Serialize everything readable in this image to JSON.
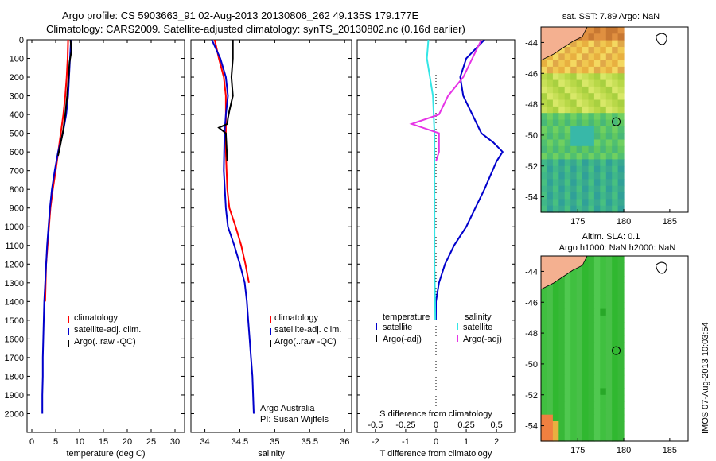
{
  "header": {
    "line1": "Argo profile: CS 5903663_91 02-Aug-2013 20130806_262 49.135S 179.177E",
    "line2": "Climatology: CARS2009. Satellite-adjusted climatology: synTS_20130802.nc (0.16d earlier)"
  },
  "map_titles": {
    "top": "sat. SST: 7.89 Argo: NaN",
    "bottom_1": "Altim. SLA: 0.1",
    "bottom_2": "Argo h1000: NaN h2000: NaN"
  },
  "side_stamp": "IMOS 07-Aug-2013 10:03:54",
  "footer_note": {
    "line1": "Argo Australia",
    "line2": "PI: Susan Wijffels"
  },
  "colors": {
    "climatology": "#ff0000",
    "satellite": "#0000cc",
    "argo": "#000000",
    "satellite_s": "#33e6e6",
    "argo_s": "#e633e6"
  },
  "chart_data": [
    {
      "id": "temperature",
      "type": "line",
      "xlabel": "temperature (deg C)",
      "ylabel": "",
      "xlim": [
        -1,
        32
      ],
      "ylim": [
        0,
        2100
      ],
      "y_inverted": true,
      "xticks": [
        0,
        5,
        10,
        15,
        20,
        25,
        30
      ],
      "yticks": [
        0,
        100,
        200,
        300,
        400,
        500,
        600,
        700,
        800,
        900,
        1000,
        1100,
        1200,
        1300,
        1400,
        1500,
        1600,
        1700,
        1800,
        1900,
        2000
      ],
      "legend": [
        "climatology",
        "satellite-adj. clim.",
        "Argo(..raw -QC)"
      ],
      "series": [
        {
          "name": "climatology",
          "color": "#ff0000",
          "x": [
            7.6,
            7.5,
            7.3,
            7.0,
            6.6,
            5.8,
            5.0,
            4.4,
            3.9,
            3.6,
            3.3,
            3.0,
            2.9,
            2.8
          ],
          "y": [
            0,
            100,
            200,
            300,
            400,
            550,
            700,
            800,
            900,
            1000,
            1100,
            1200,
            1300,
            1400
          ]
        },
        {
          "name": "satellite-adj. clim.",
          "color": "#0000cc",
          "x": [
            8.2,
            8.0,
            7.8,
            7.6,
            7.2,
            6.5,
            5.5,
            4.8,
            4.2,
            3.8,
            3.5,
            3.2,
            3.0,
            2.8,
            2.6,
            2.5,
            2.4,
            2.3,
            2.3,
            2.2,
            2.2
          ],
          "y": [
            0,
            100,
            200,
            300,
            400,
            500,
            600,
            700,
            800,
            900,
            1000,
            1100,
            1200,
            1300,
            1400,
            1500,
            1600,
            1700,
            1800,
            1900,
            2000
          ]
        },
        {
          "name": "Argo(..raw -QC)",
          "color": "#000000",
          "x": [
            8.1,
            8.3,
            7.9,
            7.7,
            7.4,
            7.0,
            6.6,
            6.0,
            5.5
          ],
          "y": [
            0,
            60,
            120,
            200,
            300,
            400,
            480,
            560,
            620
          ]
        }
      ]
    },
    {
      "id": "salinity",
      "type": "line",
      "xlabel": "salinity",
      "ylabel": "",
      "xlim": [
        33.8,
        36.1
      ],
      "ylim": [
        0,
        2100
      ],
      "y_inverted": true,
      "xticks": [
        34,
        34.5,
        35,
        35.5,
        36
      ],
      "legend": [
        "climatology",
        "satellite-adj. clim.",
        "Argo(..raw -QC)"
      ],
      "series": [
        {
          "name": "climatology",
          "color": "#ff0000",
          "x": [
            34.14,
            34.2,
            34.27,
            34.3,
            34.3,
            34.3,
            34.32,
            34.35,
            34.44,
            34.52,
            34.58,
            34.63
          ],
          "y": [
            0,
            100,
            200,
            300,
            400,
            600,
            800,
            900,
            1000,
            1100,
            1200,
            1300
          ]
        },
        {
          "name": "satellite-adj. clim.",
          "color": "#0000cc",
          "x": [
            34.1,
            34.22,
            34.3,
            34.33,
            34.3,
            34.28,
            34.27,
            34.3,
            34.33,
            34.42,
            34.5,
            34.57,
            34.6,
            34.62,
            34.64,
            34.66,
            34.68,
            34.7
          ],
          "y": [
            0,
            100,
            200,
            300,
            400,
            500,
            700,
            900,
            1000,
            1100,
            1200,
            1300,
            1400,
            1500,
            1600,
            1700,
            1800,
            2000
          ]
        },
        {
          "name": "Argo(..raw -QC)",
          "color": "#000000",
          "x": [
            34.4,
            34.4,
            34.38,
            34.4,
            34.35,
            34.33,
            34.32,
            34.2,
            34.3,
            34.32
          ],
          "y": [
            0,
            100,
            200,
            300,
            380,
            420,
            450,
            470,
            500,
            650
          ]
        }
      ]
    },
    {
      "id": "difference",
      "type": "line",
      "xlabel": "T difference from climatology",
      "xlabel_secondary": "S difference from climatology",
      "ylabel": "",
      "xlim": [
        -2.6,
        2.6
      ],
      "ylim": [
        0,
        2100
      ],
      "y_inverted": true,
      "xticks": [
        -2,
        -1,
        0,
        1,
        2
      ],
      "xticks_secondary": [
        -0.5,
        -0.25,
        0,
        0.25,
        0.5
      ],
      "xticks_secondary_labels": [
        "-0.5",
        "-0.25",
        "0",
        "0.25",
        "0.5"
      ],
      "legend_headers": [
        "temperature",
        "salinity"
      ],
      "legend": [
        "satellite",
        "Argo(-adj)",
        "satellite",
        "Argo(-adj)"
      ],
      "series": [
        {
          "name": "satellite",
          "color": "#0000cc",
          "quantity": "temperature",
          "x": [
            1.6,
            1.0,
            0.8,
            0.9,
            1.2,
            1.5,
            1.9,
            2.2,
            2.0,
            1.6,
            1.3,
            1.0,
            0.6,
            0.3,
            0.1,
            0.0,
            0.0
          ],
          "y": [
            0,
            100,
            200,
            300,
            400,
            500,
            550,
            600,
            650,
            800,
            900,
            1000,
            1100,
            1200,
            1300,
            1400,
            1500
          ]
        },
        {
          "name": "Argo(-adj)",
          "color": "#000000",
          "quantity": "temperature",
          "x": [],
          "y": []
        },
        {
          "name": "satellite",
          "color": "#33e6e6",
          "quantity": "salinity",
          "x": [
            -0.25,
            -0.3,
            -0.2,
            -0.1,
            -0.05,
            -0.05,
            -0.05,
            -0.05,
            -0.05,
            -0.04,
            -0.03,
            -0.02
          ],
          "y": [
            0,
            100,
            200,
            300,
            500,
            700,
            900,
            1100,
            1200,
            1300,
            1400,
            1500
          ]
        },
        {
          "name": "Argo(-adj)",
          "color": "#e633e6",
          "quantity": "salinity",
          "x": [
            1.5,
            1.2,
            0.9,
            0.4,
            0.1,
            -0.8,
            0.1,
            0.1,
            0.0
          ],
          "y": [
            0,
            100,
            200,
            300,
            400,
            450,
            500,
            600,
            650
          ]
        }
      ]
    },
    {
      "id": "sst_map",
      "type": "heatmap",
      "title": "sat. SST: 7.89 Argo: NaN",
      "xlim": [
        171,
        187
      ],
      "ylim": [
        -55,
        -43
      ],
      "xticks": [
        175,
        180,
        185
      ],
      "yticks": [
        -44,
        -46,
        -48,
        -50,
        -52,
        -54
      ],
      "float_position": [
        179.177,
        -49.135
      ]
    },
    {
      "id": "sla_map",
      "type": "heatmap",
      "title": "Altim. SLA: 0.1",
      "xlim": [
        171,
        187
      ],
      "ylim": [
        -55,
        -43
      ],
      "xticks": [
        175,
        180,
        185
      ],
      "yticks": [
        -44,
        -46,
        -48,
        -50,
        -52,
        -54
      ],
      "float_position": [
        179.177,
        -49.135
      ]
    }
  ]
}
